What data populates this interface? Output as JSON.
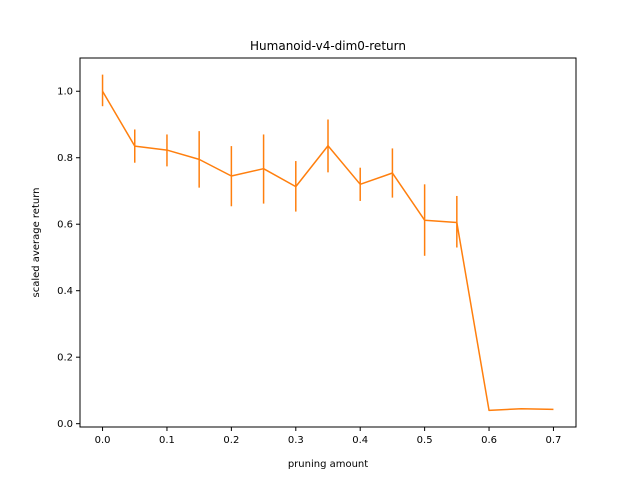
{
  "chart_data": {
    "type": "line",
    "title": "Humanoid-v4-dim0-return",
    "xlabel": "pruning amount",
    "ylabel": "scaled average return",
    "xlim": [
      -0.035,
      0.735
    ],
    "ylim": [
      -0.01,
      1.1
    ],
    "xticks": [
      0.0,
      0.1,
      0.2,
      0.3,
      0.4,
      0.5,
      0.6,
      0.7
    ],
    "xtick_labels": [
      "0.0",
      "0.1",
      "0.2",
      "0.3",
      "0.4",
      "0.5",
      "0.6",
      "0.7"
    ],
    "yticks": [
      0.0,
      0.2,
      0.4,
      0.6,
      0.8,
      1.0
    ],
    "ytick_labels": [
      "0.0",
      "0.2",
      "0.4",
      "0.6",
      "0.8",
      "1.0"
    ],
    "grid": false,
    "series_color": "#ff7f0e",
    "x": [
      0.0,
      0.05,
      0.1,
      0.15,
      0.2,
      0.25,
      0.3,
      0.35,
      0.4,
      0.45,
      0.5,
      0.55,
      0.6,
      0.65,
      0.7
    ],
    "series": [
      {
        "values": [
          1.0,
          0.835,
          0.823,
          0.795,
          0.745,
          0.767,
          0.713,
          0.836,
          0.72,
          0.754,
          0.612,
          0.605,
          0.04,
          0.045,
          0.043
        ],
        "yerr_low": [
          0.955,
          0.785,
          0.774,
          0.71,
          0.654,
          0.662,
          0.638,
          0.756,
          0.67,
          0.68,
          0.505,
          0.53,
          0.04,
          0.045,
          0.043
        ],
        "yerr_high": [
          1.05,
          0.885,
          0.87,
          0.88,
          0.835,
          0.87,
          0.79,
          0.915,
          0.77,
          0.828,
          0.72,
          0.685,
          0.04,
          0.045,
          0.043
        ]
      }
    ]
  }
}
